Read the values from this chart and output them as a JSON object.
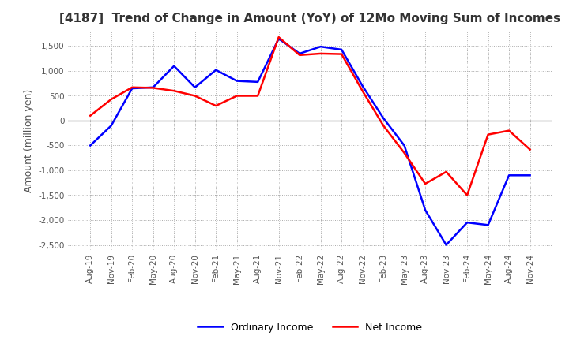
{
  "title": "[4187]  Trend of Change in Amount (YoY) of 12Mo Moving Sum of Incomes",
  "ylabel": "Amount (million yen)",
  "ylim": [
    -2600,
    1800
  ],
  "yticks": [
    -2500,
    -2000,
    -1500,
    -1000,
    -500,
    0,
    500,
    1000,
    1500
  ],
  "x_labels": [
    "Aug-19",
    "Nov-19",
    "Feb-20",
    "May-20",
    "Aug-20",
    "Nov-20",
    "Feb-21",
    "May-21",
    "Aug-21",
    "Nov-21",
    "Feb-22",
    "May-22",
    "Aug-22",
    "Nov-22",
    "Feb-23",
    "May-23",
    "Aug-23",
    "Nov-23",
    "Feb-24",
    "May-24",
    "Aug-24",
    "Nov-24"
  ],
  "ordinary_income": [
    -500,
    -100,
    650,
    670,
    1100,
    670,
    1020,
    800,
    780,
    1650,
    1350,
    1490,
    1430,
    700,
    50,
    -500,
    -1800,
    -2500,
    -2050,
    -2100,
    -1100,
    -1100
  ],
  "net_income": [
    100,
    430,
    670,
    660,
    600,
    500,
    300,
    500,
    500,
    1680,
    1320,
    1350,
    1340,
    600,
    -100,
    -650,
    -1270,
    -1030,
    -1500,
    -280,
    -200,
    -580
  ],
  "ordinary_color": "#0000ff",
  "net_color": "#ff0000",
  "line_width": 1.8,
  "background_color": "#ffffff",
  "grid_color": "#aaaaaa",
  "title_color": "#333333",
  "legend_labels": [
    "Ordinary Income",
    "Net Income"
  ]
}
